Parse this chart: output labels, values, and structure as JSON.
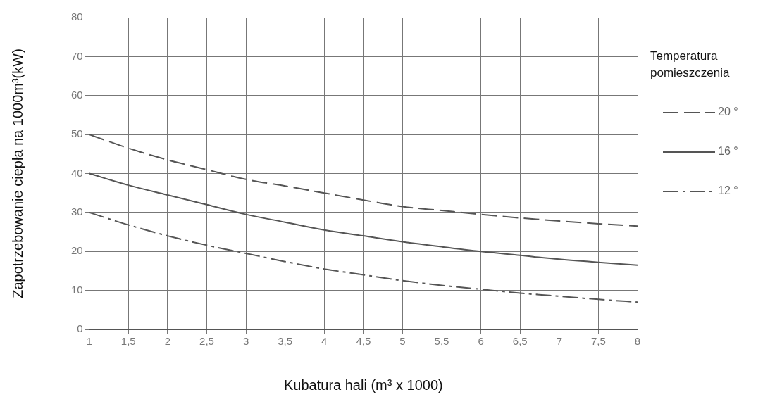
{
  "chart_data": {
    "type": "line",
    "xlabel": "Kubatura hali (m³ x 1000)",
    "ylabel": "Zapotrzebowanie ciepła na 1000m³(kW)",
    "legend_title": "Temperatura pomieszczenia",
    "x": [
      1,
      1.5,
      2,
      2.5,
      3,
      3.5,
      4,
      4.5,
      5,
      5.5,
      6,
      6.5,
      7,
      7.5,
      8
    ],
    "series": [
      {
        "name": "20 °",
        "color": "#555555",
        "line_style": "dashed",
        "values": [
          50,
          46.5,
          43.5,
          41,
          38.5,
          36.8,
          35,
          33.2,
          31.5,
          30.5,
          29.5,
          28.6,
          27.8,
          27.1,
          26.5
        ]
      },
      {
        "name": "16 °",
        "color": "#555555",
        "line_style": "solid",
        "values": [
          40,
          37,
          34.5,
          32,
          29.5,
          27.5,
          25.5,
          24,
          22.5,
          21.2,
          20,
          19,
          18,
          17.2,
          16.5
        ]
      },
      {
        "name": "12 °",
        "color": "#555555",
        "line_style": "dashdot",
        "values": [
          30,
          26.8,
          24,
          21.6,
          19.5,
          17.4,
          15.5,
          14,
          12.5,
          11.3,
          10.3,
          9.3,
          8.5,
          7.7,
          7
        ]
      }
    ],
    "xlim": [
      1,
      8
    ],
    "ylim": [
      0,
      80
    ],
    "xticks": [
      1,
      {
        "value": 1.5,
        "label": "1,5"
      },
      2,
      {
        "value": 2.5,
        "label": "2,5"
      },
      3,
      {
        "value": 3.5,
        "label": "3,5"
      },
      4,
      {
        "value": 4.5,
        "label": "4,5"
      },
      5,
      {
        "value": 5.5,
        "label": "5,5"
      },
      6,
      {
        "value": 6.5,
        "label": "6,5"
      },
      7,
      {
        "value": 7.5,
        "label": "7,5"
      },
      8
    ],
    "yticks": [
      0,
      10,
      20,
      30,
      40,
      50,
      60,
      70,
      80
    ],
    "grid": true,
    "legend": "right",
    "marker": "none"
  }
}
